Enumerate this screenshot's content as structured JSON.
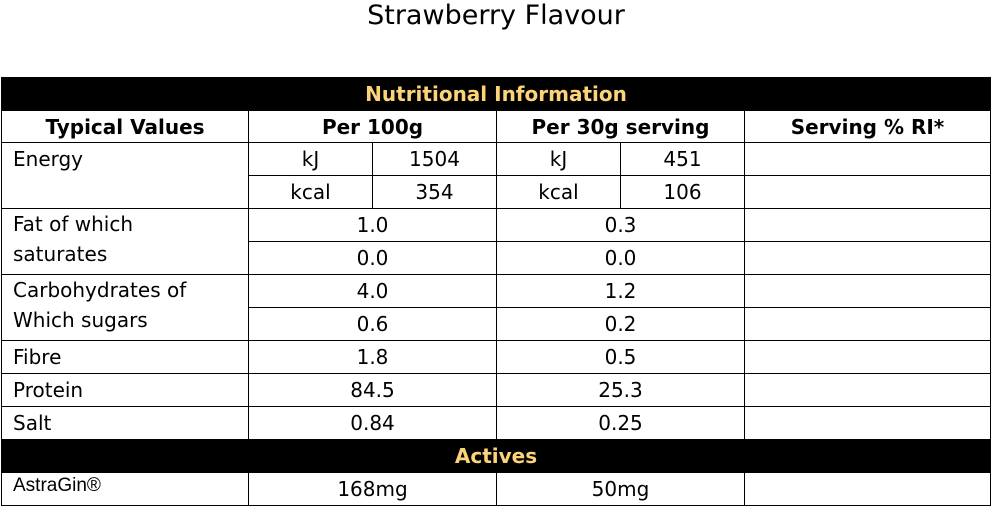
{
  "title": "Strawberry Flavour",
  "colors": {
    "band_bg": "#000000",
    "band_text": "#fdd37a"
  },
  "table": {
    "band_nutri": "Nutritional Information",
    "headers": [
      "Typical Values",
      "Per 100g",
      "Per 30g serving",
      "Serving % RI*"
    ],
    "energy": {
      "label": "Energy",
      "kj_unit": "kJ",
      "kcal_unit": "kcal",
      "per100_kj": "1504",
      "per100_kcal": "354",
      "per30_kj": "451",
      "per30_kcal": "106"
    },
    "fat": {
      "label1": "Fat of which",
      "label2": "saturates",
      "per100_a": "1.0",
      "per30_a": "0.3",
      "per100_b": "0.0",
      "per30_b": "0.0"
    },
    "carbs": {
      "label1": "Carbohydrates of",
      "label2": "Which sugars",
      "per100_a": "4.0",
      "per30_a": "1.2",
      "per100_b": "0.6",
      "per30_b": "0.2"
    },
    "fibre": {
      "label": "Fibre",
      "per100": "1.8",
      "per30": "0.5"
    },
    "protein": {
      "label": "Protein",
      "per100": "84.5",
      "per30": "25.3"
    },
    "salt": {
      "label": "Salt",
      "per100": "0.84",
      "per30": "0.25"
    },
    "band_actives": "Actives",
    "astragin": {
      "label": "AstraGin®",
      "per100": "168mg",
      "per30": "50mg"
    }
  }
}
